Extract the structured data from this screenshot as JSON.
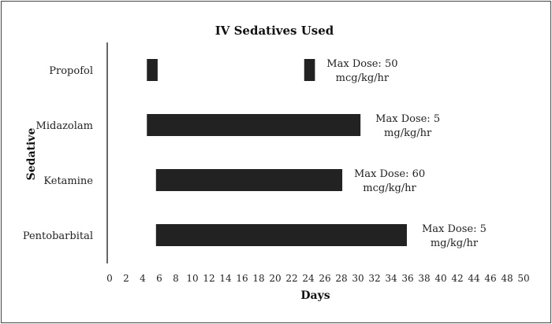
{
  "chart_data": {
    "type": "bar",
    "orientation": "horizontal",
    "title": "IV Sedatives Used",
    "xlabel": "Days",
    "ylabel": "Sedative",
    "xlim": [
      0,
      50
    ],
    "xticks": [
      "0",
      "2",
      "4",
      "6",
      "8",
      "10",
      "12",
      "14",
      "16",
      "18",
      "20",
      "22",
      "24",
      "26",
      "28",
      "30",
      "32",
      "34",
      "36",
      "38",
      "40",
      "42",
      "44",
      "46",
      "48",
      "50"
    ],
    "grid": false,
    "categories": [
      "Propofol",
      "Midazolam",
      "Ketamine",
      "Pentobarbital"
    ],
    "bars": [
      {
        "category": "Propofol",
        "start": 4.5,
        "end": 5.8
      },
      {
        "category": "Propofol",
        "start": 23.5,
        "end": 24.8
      },
      {
        "category": "Midazolam",
        "start": 4.5,
        "end": 30.3
      },
      {
        "category": "Ketamine",
        "start": 5.6,
        "end": 28.1
      },
      {
        "category": "Pentobarbital",
        "start": 5.6,
        "end": 35.9
      }
    ],
    "annotations": [
      {
        "category": "Propofol",
        "line1": "Max Dose: 50",
        "line2": "mcg/kg/hr"
      },
      {
        "category": "Midazolam",
        "line1": "Max Dose: 5",
        "line2": "mg/kg/hr"
      },
      {
        "category": "Ketamine",
        "line1": "Max Dose: 60",
        "line2": "mcg/kg/hr"
      },
      {
        "category": "Pentobarbital",
        "line1": "Max Dose: 5",
        "line2": "mg/kg/hr"
      }
    ],
    "colors": {
      "bar": "#222222"
    }
  }
}
